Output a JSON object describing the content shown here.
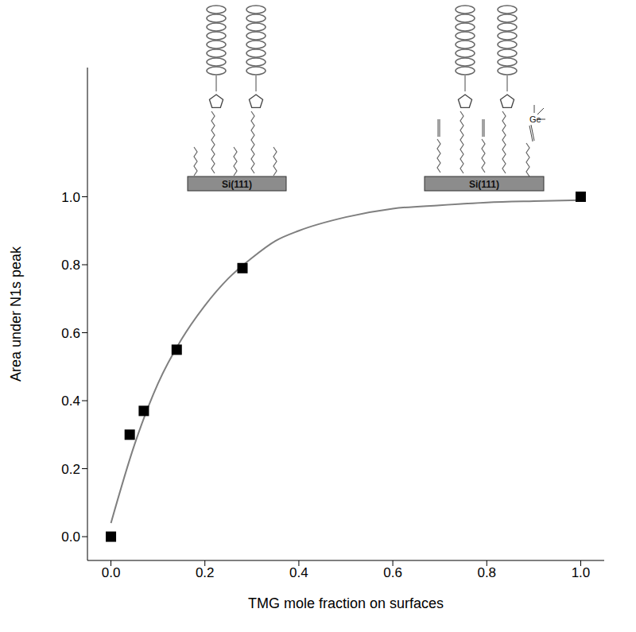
{
  "chart_data": {
    "type": "scatter",
    "x_label": "TMG mole fraction on surfaces",
    "y_label": "Area under N1s peak",
    "x": [
      0,
      0.04,
      0.07,
      0.14,
      0.28,
      1.0
    ],
    "values": [
      0,
      0.3,
      0.37,
      0.55,
      0.79,
      1.0
    ],
    "color": "#000000",
    "marker": "square",
    "fit": {
      "x": [
        0,
        0.05,
        0.1,
        0.15,
        0.2,
        0.25,
        0.3,
        0.35,
        0.4,
        0.5,
        0.6,
        0.7,
        0.8,
        0.9,
        1.0
      ],
      "values": [
        0.04,
        0.27,
        0.45,
        0.58,
        0.68,
        0.76,
        0.82,
        0.87,
        0.9,
        0.94,
        0.965,
        0.975,
        0.983,
        0.987,
        0.99
      ],
      "color": "#7f7f7f",
      "line_style": "solid"
    },
    "xlim": [
      -0.05,
      1.05
    ],
    "ylim": [
      -0.07,
      1.38
    ],
    "xticks": [
      {
        "value": 0,
        "label": "0.0"
      },
      {
        "value": 0.2,
        "label": "0.2"
      },
      {
        "value": 0.4,
        "label": "0.4"
      },
      {
        "value": 0.6,
        "label": "0.6"
      },
      {
        "value": 0.8,
        "label": "0.8"
      },
      {
        "value": 1,
        "label": "1.0"
      }
    ],
    "yticks": [
      {
        "value": 0,
        "label": "0.0"
      },
      {
        "value": 0.2,
        "label": "0.2"
      },
      {
        "value": 0.4,
        "label": "0.4"
      },
      {
        "value": 0.6,
        "label": "0.6"
      },
      {
        "value": 0.8,
        "label": "0.8"
      },
      {
        "value": 1,
        "label": "1.0"
      }
    ],
    "grid": false,
    "annotations": [
      "Si(111)",
      "Si(111)",
      "Ge"
    ]
  }
}
